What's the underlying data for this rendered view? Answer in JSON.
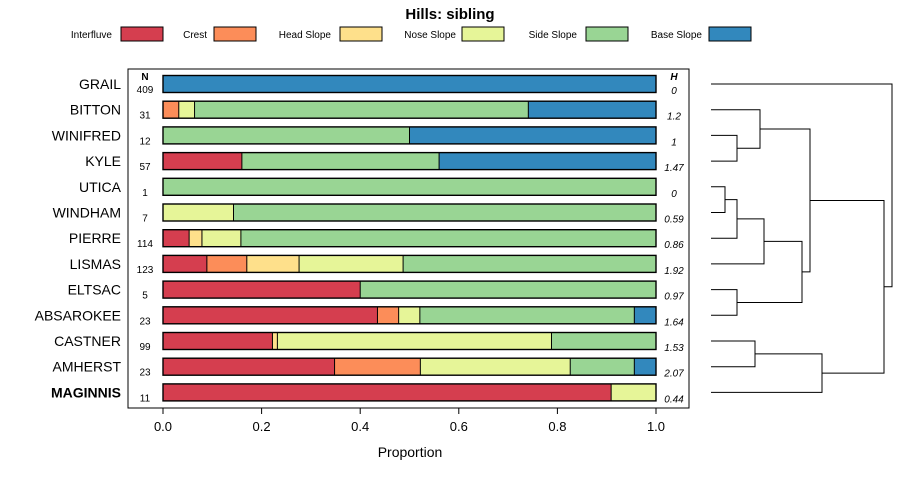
{
  "chart_data": {
    "type": "bar",
    "orientation": "horizontal",
    "stacked": true,
    "title": "Hills: sibling",
    "xlabel": "Proportion",
    "ylabel": "",
    "xlim": [
      0,
      1
    ],
    "x_ticks": [
      0.0,
      0.2,
      0.4,
      0.6,
      0.8,
      1.0
    ],
    "x_tick_labels": [
      "0.0",
      "0.2",
      "0.4",
      "0.6",
      "0.8",
      "1.0"
    ],
    "n_header": "N",
    "h_header": "H",
    "legend": [
      {
        "name": "Interfluve",
        "color": "#D53E4F"
      },
      {
        "name": "Crest",
        "color": "#FC8D59"
      },
      {
        "name": "Head Slope",
        "color": "#FEE08B"
      },
      {
        "name": "Nose Slope",
        "color": "#E6F598"
      },
      {
        "name": "Side Slope",
        "color": "#99D594"
      },
      {
        "name": "Base Slope",
        "color": "#3288BD"
      }
    ],
    "categories": [
      "GRAIL",
      "BITTON",
      "WINIFRED",
      "KYLE",
      "UTICA",
      "WINDHAM",
      "PIERRE",
      "LISMAS",
      "ELTSAC",
      "ABSAROKEE",
      "CASTNER",
      "AMHERST",
      "MAGINNIS"
    ],
    "highlighted": "MAGINNIS",
    "n": [
      "409",
      "31",
      "12",
      "57",
      "1",
      "7",
      "114",
      "123",
      "5",
      "23",
      "99",
      "23",
      "11"
    ],
    "h": [
      "0",
      "1.2",
      "1",
      "1.47",
      "0",
      "0.59",
      "0.86",
      "1.92",
      "0.97",
      "1.64",
      "1.53",
      "2.07",
      "0.44"
    ],
    "series": [
      {
        "name": "Interfluve",
        "values": [
          0,
          0,
          0,
          0.16,
          0,
          0,
          0.053,
          0.089,
          0.4,
          0.435,
          0.222,
          0.348,
          0.909
        ]
      },
      {
        "name": "Crest",
        "values": [
          0,
          0.032,
          0,
          0,
          0,
          0,
          0,
          0.081,
          0,
          0.043,
          0,
          0.174,
          0
        ]
      },
      {
        "name": "Head Slope",
        "values": [
          0,
          0,
          0,
          0,
          0,
          0,
          0.026,
          0.106,
          0,
          0,
          0.01,
          0,
          0
        ]
      },
      {
        "name": "Nose Slope",
        "values": [
          0,
          0.032,
          0,
          0,
          0,
          0.143,
          0.079,
          0.211,
          0,
          0.043,
          0.556,
          0.304,
          0.091
        ]
      },
      {
        "name": "Side Slope",
        "values": [
          0,
          0.677,
          0.5,
          0.4,
          1.0,
          0.857,
          0.842,
          0.513,
          0.6,
          0.435,
          0.212,
          0.13,
          0
        ]
      },
      {
        "name": "Base Slope",
        "values": [
          1.0,
          0.259,
          0.5,
          0.44,
          0,
          0,
          0,
          0,
          0,
          0.044,
          0,
          0.044,
          0
        ]
      }
    ],
    "dendrogram": {
      "merges": [
        [
          "WINIFRED",
          "KYLE"
        ],
        [
          "UTICA",
          "WINDHAM"
        ],
        [
          "ELTSAC",
          "ABSAROKEE"
        ],
        [
          "CASTNER",
          "AMHERST"
        ],
        [
          "BITTON",
          "WINIFRED+KYLE"
        ],
        [
          "UTICA+WINDHAM",
          "PIERRE"
        ],
        [
          "UTICA+WINDHAM+PIERRE",
          "LISMAS"
        ],
        [
          "CASTNER+AMHERST",
          "MAGINNIS"
        ],
        [
          "UTICA..LISMAS",
          "ELTSAC+ABSAROKEE"
        ],
        [
          "BITTON..KYLE",
          "UTICA..ABSAROKEE"
        ],
        [
          "BITTON..ABSAROKEE",
          "CASTNER..MAGINNIS"
        ],
        [
          "GRAIL",
          "BITTON..MAGINNIS"
        ]
      ]
    }
  }
}
